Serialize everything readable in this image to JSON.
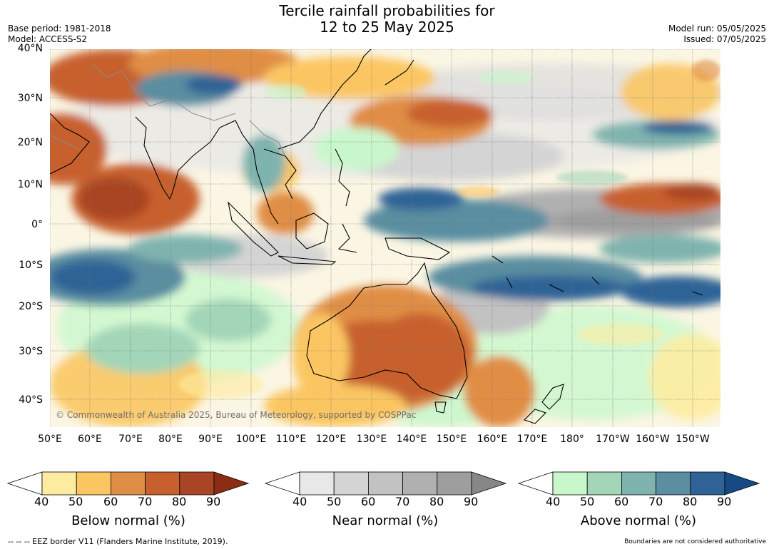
{
  "header": {
    "title_line1": "Tercile rainfall probabilities for",
    "title_line2": "12 to 25 May 2025",
    "base_period": "Base period: 1981-2018",
    "model": "Model: ACCESS-S2",
    "model_run": "Model run: 05/05/2025",
    "issued": "Issued: 07/05/2025"
  },
  "map": {
    "lat_labels": [
      "40°N",
      "30°N",
      "20°N",
      "10°N",
      "0°",
      "10°S",
      "20°S",
      "30°S",
      "40°S"
    ],
    "lon_labels": [
      "50°E",
      "60°E",
      "70°E",
      "80°E",
      "90°E",
      "100°E",
      "110°E",
      "120°E",
      "130°E",
      "140°E",
      "150°E",
      "160°E",
      "170°E",
      "180°",
      "170°W",
      "160°W",
      "150°W"
    ],
    "copyright": "© Commonwealth of Australia 2025, Bureau of Meteorology, supported by COSPPac"
  },
  "colorbars": [
    {
      "title": "Below normal (%)",
      "ticks": [
        "40",
        "50",
        "60",
        "70",
        "80",
        "90"
      ],
      "colors": [
        "#fdeca0",
        "#fbc662",
        "#e08e45",
        "#c8602e",
        "#a94424",
        "#8b2d15"
      ]
    },
    {
      "title": "Near normal (%)",
      "ticks": [
        "40",
        "50",
        "60",
        "70",
        "80",
        "90"
      ],
      "colors": [
        "#e8e8e8",
        "#d4d4d4",
        "#c2c2c2",
        "#b0b0b0",
        "#9e9e9e",
        "#878787"
      ]
    },
    {
      "title": "Above normal (%)",
      "ticks": [
        "40",
        "50",
        "60",
        "70",
        "80",
        "90"
      ],
      "colors": [
        "#c9f7cc",
        "#a3d5b8",
        "#7fb4ae",
        "#5a8ea0",
        "#2f6396",
        "#174a85"
      ]
    }
  ],
  "footer": {
    "eez": "--  --  -- EEZ border V11 (Flanders Marine Institute, 2019).",
    "disclaimer": "Boundaries are not considered authoritative"
  }
}
